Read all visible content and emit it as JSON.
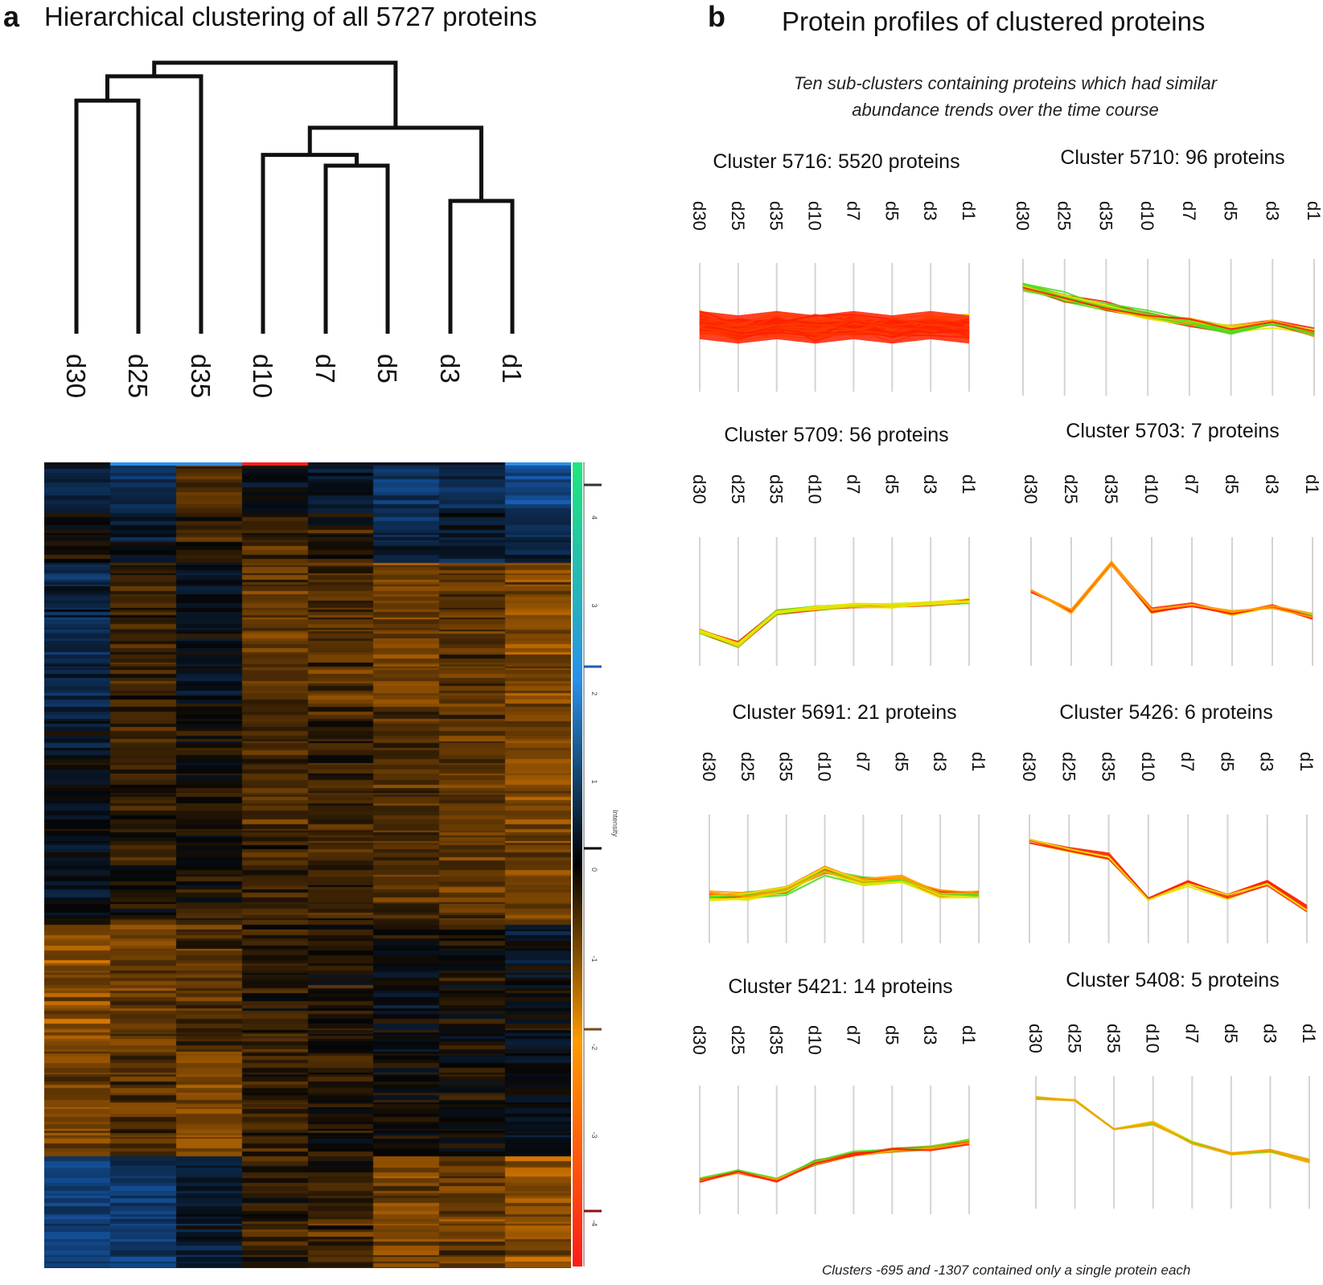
{
  "panel_a": {
    "letter": "a",
    "title": "Hierarchical clustering of all 5727 proteins"
  },
  "panel_b": {
    "letter": "b",
    "title": "Protein profiles of clustered proteins",
    "subtitle_line1": "Ten sub-clusters containing proteins which had similar",
    "subtitle_line2": "abundance trends over the time course",
    "footnote": "Clusters -695 and -1307 contained only a single protein each"
  },
  "colors": {
    "heat_low": "#1a6fd6",
    "heat_mid": "#050505",
    "heat_high": "#ff8c00",
    "scale_top": "#1de87a",
    "scale_bottom": "#ff1a1a",
    "profile_hot": "#ff2000",
    "profile_mid": "#ffa000",
    "profile_light": "#e6e600",
    "profile_green": "#55dd22"
  },
  "chart_data": [
    {
      "type": "dendrogram",
      "title": "Hierarchical clustering of all 5727 proteins",
      "leaves": [
        "d30",
        "d25",
        "d35",
        "d10",
        "d7",
        "d5",
        "d3",
        "d1"
      ],
      "merges": [
        {
          "id": "m1",
          "left": "d30",
          "right": "d25",
          "height": 0.86
        },
        {
          "id": "m2",
          "left": "m1",
          "right": "d35",
          "height": 0.95
        },
        {
          "id": "m3",
          "left": "d7",
          "right": "d5",
          "height": 0.62
        },
        {
          "id": "m4",
          "left": "d10",
          "right": "m3",
          "height": 0.66
        },
        {
          "id": "m5",
          "left": "d3",
          "right": "d1",
          "height": 0.49
        },
        {
          "id": "m6",
          "left": "m4",
          "right": "m5",
          "height": 0.76
        },
        {
          "id": "m7",
          "left": "m2",
          "right": "m6",
          "height": 1.0
        }
      ]
    },
    {
      "type": "heatmap",
      "columns": [
        "d30",
        "d25",
        "d35",
        "d10",
        "d7",
        "d5",
        "d3",
        "d1"
      ],
      "rows": 5727,
      "color_scale": {
        "label": "Intensity",
        "ticks": [
          "4",
          "3",
          "2",
          "1",
          "0",
          "-1",
          "-2",
          "-3",
          "-4"
        ],
        "min": -4,
        "max": 4
      }
    },
    {
      "type": "line",
      "title": "Cluster 5716: 5520 proteins",
      "x": [
        "d30",
        "d25",
        "d35",
        "d10",
        "d7",
        "d5",
        "d3",
        "d1"
      ],
      "ylim": [
        -1.5,
        1.5
      ],
      "center": [
        0.05,
        -0.05,
        0.05,
        -0.05,
        0.05,
        -0.05,
        0.05,
        -0.05
      ],
      "spread": 0.6,
      "n_lines": 60,
      "palette": [
        "profile_hot",
        "profile_hot",
        "profile_mid",
        "profile_light"
      ]
    },
    {
      "type": "line",
      "title": "Cluster 5710: 96 proteins",
      "x": [
        "d30",
        "d25",
        "d35",
        "d10",
        "d7",
        "d5",
        "d3",
        "d1"
      ],
      "ylim": [
        -1.5,
        1.5
      ],
      "center": [
        0.9,
        0.65,
        0.45,
        0.25,
        0.1,
        -0.05,
        0.1,
        -0.1
      ],
      "spread": 0.2,
      "n_lines": 40,
      "palette": [
        "profile_hot",
        "profile_hot",
        "profile_mid",
        "profile_light",
        "profile_green"
      ]
    },
    {
      "type": "line",
      "title": "Cluster 5709: 56 proteins",
      "x": [
        "d30",
        "d25",
        "d35",
        "d10",
        "d7",
        "d5",
        "d3",
        "d1"
      ],
      "ylim": [
        -1.5,
        1.5
      ],
      "center": [
        -0.7,
        -1.0,
        -0.25,
        -0.15,
        -0.1,
        -0.1,
        -0.05,
        0.0
      ],
      "spread": 0.13,
      "n_lines": 35,
      "palette": [
        "profile_hot",
        "profile_hot",
        "profile_mid",
        "profile_light",
        "profile_green"
      ]
    },
    {
      "type": "line",
      "title": "Cluster 5703: 7 proteins",
      "x": [
        "d30",
        "d25",
        "d35",
        "d10",
        "d7",
        "d5",
        "d3",
        "d1"
      ],
      "ylim": [
        -1.5,
        1.5
      ],
      "center": [
        0.3,
        -0.2,
        0.9,
        -0.2,
        -0.05,
        -0.25,
        -0.1,
        -0.3
      ],
      "spread": 0.18,
      "n_lines": 7,
      "palette": [
        "profile_green",
        "profile_light",
        "profile_mid",
        "profile_hot"
      ]
    },
    {
      "type": "line",
      "title": "Cluster 5691: 21 proteins",
      "x": [
        "d30",
        "d25",
        "d35",
        "d10",
        "d7",
        "d5",
        "d3",
        "d1"
      ],
      "ylim": [
        -1.5,
        1.5
      ],
      "center": [
        -0.4,
        -0.4,
        -0.25,
        0.2,
        -0.05,
        0.0,
        -0.35,
        -0.35
      ],
      "spread": 0.22,
      "n_lines": 21,
      "palette": [
        "profile_mid",
        "profile_light",
        "profile_green",
        "profile_hot"
      ]
    },
    {
      "type": "line",
      "title": "Cluster 5426: 6 proteins",
      "x": [
        "d30",
        "d25",
        "d35",
        "d10",
        "d7",
        "d5",
        "d3",
        "d1"
      ],
      "ylim": [
        -1.5,
        1.5
      ],
      "center": [
        0.9,
        0.7,
        0.5,
        -0.5,
        -0.1,
        -0.4,
        -0.1,
        -0.7
      ],
      "spread": 0.15,
      "n_lines": 6,
      "palette": [
        "profile_hot",
        "profile_mid",
        "profile_light",
        "profile_green"
      ]
    },
    {
      "type": "line",
      "title": "Cluster 5421: 14 proteins",
      "x": [
        "d30",
        "d25",
        "d35",
        "d10",
        "d7",
        "d5",
        "d3",
        "d1"
      ],
      "ylim": [
        -1.5,
        1.5
      ],
      "center": [
        -0.7,
        -0.5,
        -0.7,
        -0.3,
        -0.1,
        0.0,
        0.05,
        0.2
      ],
      "spread": 0.14,
      "n_lines": 14,
      "palette": [
        "profile_hot",
        "profile_mid",
        "profile_light",
        "profile_green"
      ]
    },
    {
      "type": "line",
      "title": "Cluster 5408: 5 proteins",
      "x": [
        "d30",
        "d25",
        "d35",
        "d10",
        "d7",
        "d5",
        "d3",
        "d1"
      ],
      "ylim": [
        -1.5,
        1.5
      ],
      "center": [
        1.0,
        0.95,
        0.3,
        0.45,
        0.0,
        -0.25,
        -0.2,
        -0.4
      ],
      "spread": 0.12,
      "n_lines": 5,
      "palette": [
        "profile_green",
        "profile_light",
        "profile_mid"
      ]
    }
  ]
}
